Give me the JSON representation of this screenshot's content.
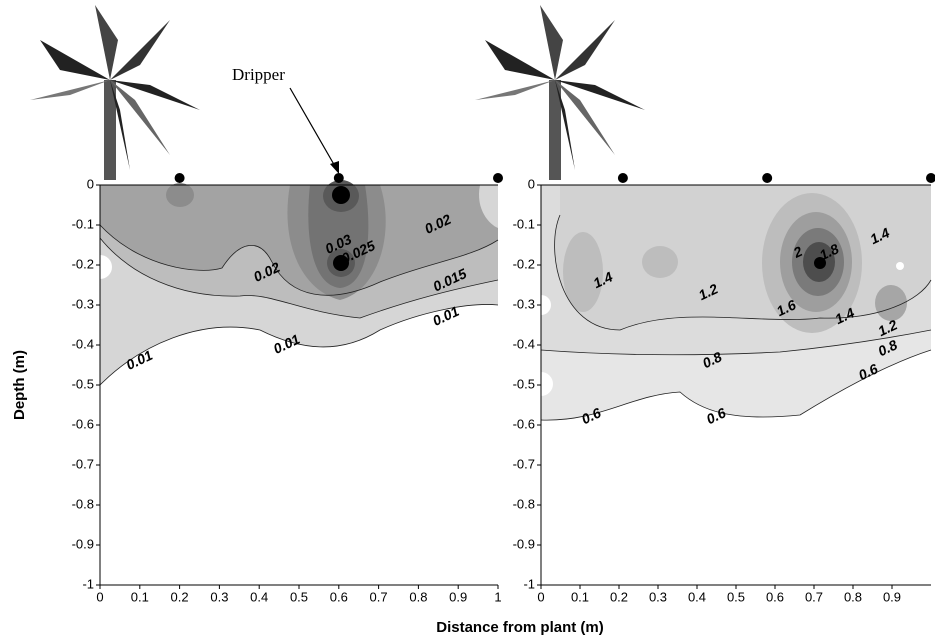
{
  "xlabel": "Distance from plant (m)",
  "chart_data": [
    {
      "type": "contour",
      "ylabel": "Depth (m)",
      "annotation": "Dripper",
      "xlim": [
        0,
        1
      ],
      "ylim": [
        -1,
        0
      ],
      "xticks": [
        0,
        0.1,
        0.2,
        0.3,
        0.4,
        0.5,
        0.6,
        0.7,
        0.8,
        0.9,
        1
      ],
      "yticks": [
        0,
        -0.1,
        -0.2,
        -0.3,
        -0.4,
        -0.5,
        -0.6,
        -0.7,
        -0.8,
        -0.9,
        -1
      ],
      "drippers": [
        0.2,
        0.6,
        1
      ],
      "contour_labels": {
        "x": [
          0.6,
          0.65,
          0.85,
          0.42,
          0.88,
          0.87,
          0.1,
          0.47
        ],
        "y": [
          -0.15,
          -0.17,
          -0.1,
          -0.22,
          -0.24,
          -0.33,
          -0.44,
          -0.4
        ],
        "values": [
          0.03,
          0.025,
          0.02,
          0.02,
          0.015,
          0.01,
          0.01,
          0.01
        ]
      }
    },
    {
      "type": "contour",
      "xlim": [
        0,
        1
      ],
      "ylim": [
        -1,
        0
      ],
      "xticks": [
        0,
        0.1,
        0.2,
        0.3,
        0.4,
        0.5,
        0.6,
        0.7,
        0.8,
        0.9
      ],
      "yticks": [
        0,
        -0.1,
        -0.2,
        -0.3,
        -0.4,
        -0.5,
        -0.6,
        -0.7,
        -0.8,
        -0.9,
        -1
      ],
      "drippers": [
        0.21,
        0.58,
        1
      ],
      "contour_labels": {
        "x": [
          0.16,
          0.43,
          0.63,
          0.66,
          0.74,
          0.87,
          0.78,
          0.89,
          0.89,
          0.84,
          0.44,
          0.13,
          0.45
        ],
        "y": [
          -0.24,
          -0.27,
          -0.31,
          -0.17,
          -0.17,
          -0.13,
          -0.33,
          -0.36,
          -0.41,
          -0.47,
          -0.44,
          -0.58,
          -0.58
        ],
        "values": [
          1.4,
          1.2,
          1.6,
          2,
          1.8,
          1.4,
          1.4,
          1.2,
          0.8,
          0.6,
          0.8,
          0.6,
          0.6
        ]
      }
    }
  ]
}
